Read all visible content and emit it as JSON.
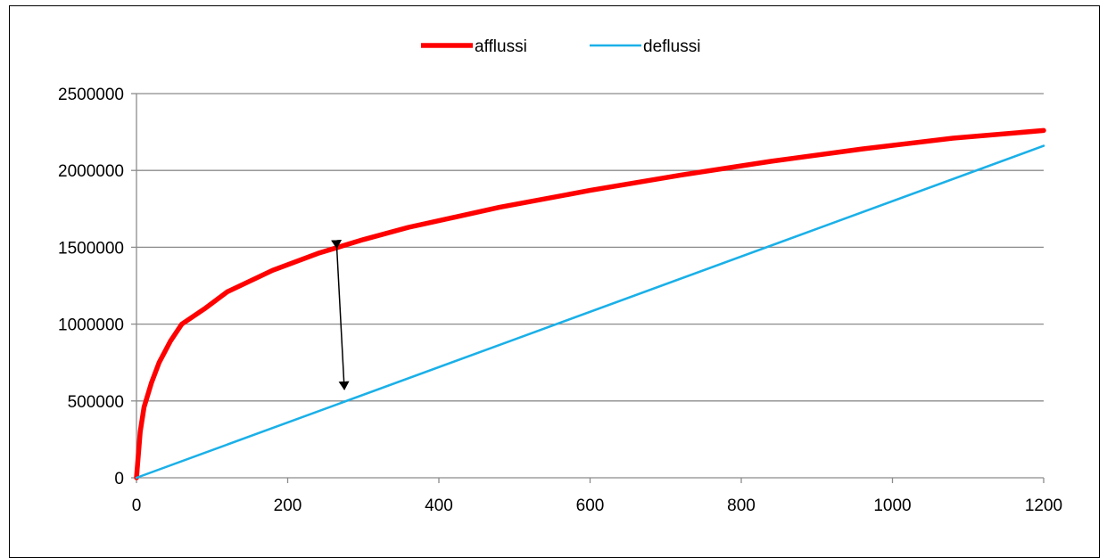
{
  "chart_data": {
    "type": "line",
    "title": "",
    "xlabel": "",
    "ylabel": "",
    "xlim": [
      0,
      1200
    ],
    "ylim": [
      0,
      2500000
    ],
    "xticks": [
      0,
      200,
      400,
      600,
      800,
      1000,
      1200
    ],
    "yticks": [
      0,
      500000,
      1000000,
      1500000,
      2000000,
      2500000
    ],
    "xtick_labels": [
      "0",
      "200",
      "400",
      "600",
      "800",
      "1000",
      "1200"
    ],
    "ytick_labels": [
      "0",
      "500000",
      "1000000",
      "1500000",
      "2000000",
      "2500000"
    ],
    "grid": "horizontal",
    "legend_position": "top-center",
    "series": [
      {
        "name": "afflussi",
        "color": "#ff0000",
        "x": [
          0,
          5,
          10,
          15,
          20,
          30,
          45,
          60,
          90,
          120,
          180,
          240,
          300,
          360,
          480,
          600,
          720,
          840,
          960,
          1080,
          1200
        ],
        "y": [
          0,
          300000,
          460000,
          540000,
          620000,
          750000,
          890000,
          1000000,
          1100000,
          1210000,
          1350000,
          1460000,
          1550000,
          1630000,
          1760000,
          1870000,
          1970000,
          2060000,
          2140000,
          2210000,
          2260000
        ]
      },
      {
        "name": "deflussi",
        "color": "#1ab0e8",
        "x": [
          0,
          1200
        ],
        "y": [
          0,
          2160000
        ]
      }
    ],
    "annotations": [
      {
        "type": "double-arrow",
        "x1": 265,
        "y1": 1495000,
        "x2": 275,
        "y2": 575000,
        "color": "#000000"
      }
    ]
  }
}
